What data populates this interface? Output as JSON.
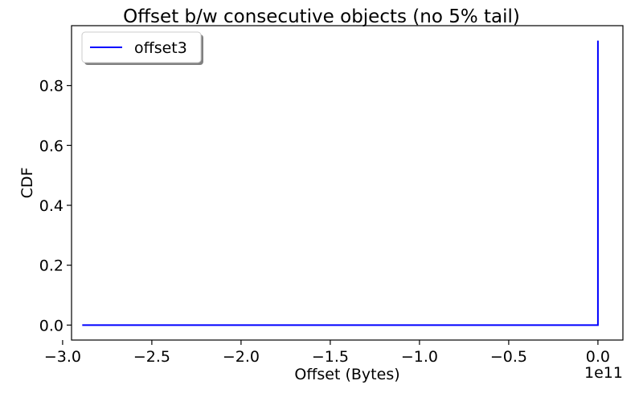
{
  "chart_data": {
    "type": "line",
    "title": "Offset b/w consecutive objects (no 5% tail)",
    "xlabel": "Offset (Bytes)",
    "ylabel": "CDF",
    "x_offset_text": "1e11",
    "x_scale_factor": 100000000000,
    "xlim": [
      -295000000000.0,
      14000000000.0
    ],
    "ylim": [
      -0.05,
      1.0
    ],
    "x_ticks": [
      -3.0,
      -2.5,
      -2.0,
      -1.5,
      -1.0,
      -0.5,
      0.0
    ],
    "x_tick_labels": [
      "−3.0",
      "−2.5",
      "−2.0",
      "−1.5",
      "−1.0",
      "−0.5",
      "0.0"
    ],
    "y_ticks": [
      0.0,
      0.2,
      0.4,
      0.6,
      0.8
    ],
    "y_tick_labels": [
      "0.0",
      "0.2",
      "0.4",
      "0.6",
      "0.8"
    ],
    "grid": false,
    "legend_position": "top-left",
    "series": [
      {
        "name": "offset3",
        "color": "#0000ff",
        "x": [
          -289000000000.0,
          0,
          0,
          0
        ],
        "y": [
          0.0,
          0.0,
          0.002,
          0.95
        ]
      }
    ]
  }
}
